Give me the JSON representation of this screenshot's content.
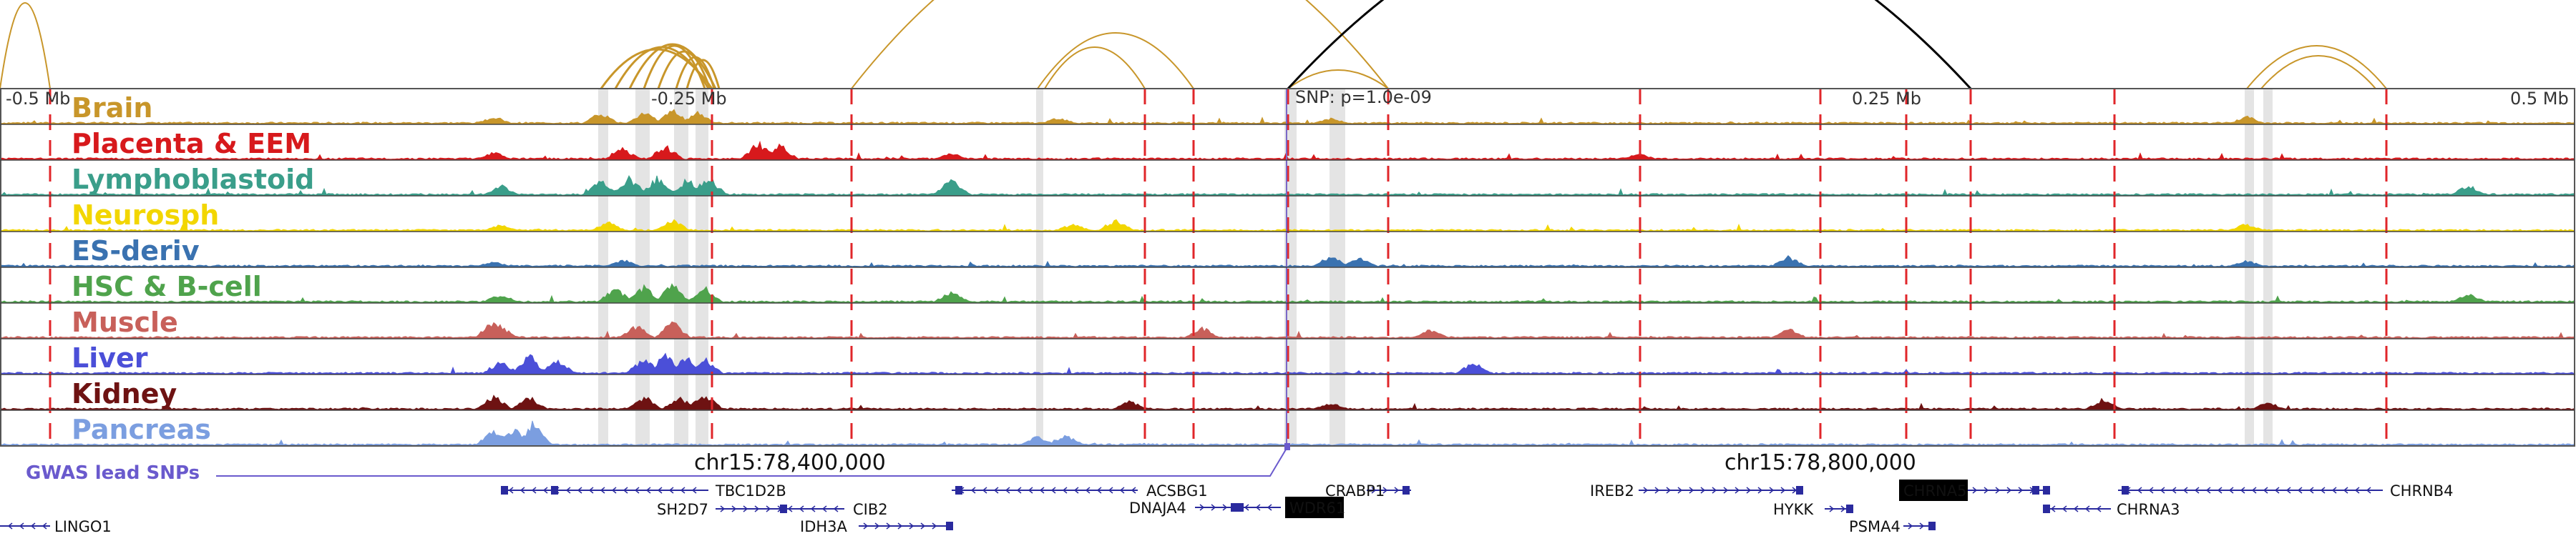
{
  "axis_labels": {
    "left": "-0.5 Mb",
    "left_mid": "-0.25 Mb",
    "right_mid": "0.25 Mb",
    "right": "0.5 Mb"
  },
  "snp_label": "SNP: p=1.0e-09",
  "chromosome_labels": [
    "chr15:78,400,000",
    "chr15:78,800,000"
  ],
  "gwas_label": "GWAS lead SNPs",
  "tracks": [
    {
      "name": "Brain",
      "color": "#c8962a"
    },
    {
      "name": "Placenta & EEM",
      "color": "#d7191c"
    },
    {
      "name": "Lymphoblastoid",
      "color": "#3a9e8a"
    },
    {
      "name": "Neurosph",
      "color": "#f2d600"
    },
    {
      "name": "ES-deriv",
      "color": "#3a72b0"
    },
    {
      "name": "HSC & B-cell",
      "color": "#4fa34c"
    },
    {
      "name": "Muscle",
      "color": "#c8605a"
    },
    {
      "name": "Liver",
      "color": "#4b4fd8"
    },
    {
      "name": "Kidney",
      "color": "#6e1212"
    },
    {
      "name": "Pancreas",
      "color": "#7b9ee0"
    }
  ],
  "genes": [
    {
      "name": "TBC1D2B",
      "highlighted": false
    },
    {
      "name": "SH2D7",
      "highlighted": false
    },
    {
      "name": "CIB2",
      "highlighted": false
    },
    {
      "name": "IDH3A",
      "highlighted": false
    },
    {
      "name": "ACSBG1",
      "highlighted": false
    },
    {
      "name": "DNAJA4",
      "highlighted": false
    },
    {
      "name": "WDR61",
      "highlighted": true
    },
    {
      "name": "CRABP1",
      "highlighted": false
    },
    {
      "name": "IREB2",
      "highlighted": false
    },
    {
      "name": "HYKK",
      "highlighted": false
    },
    {
      "name": "PSMA4",
      "highlighted": false
    },
    {
      "name": "CHRNA5",
      "highlighted": true
    },
    {
      "name": "CHRNA3",
      "highlighted": false
    },
    {
      "name": "CHRNB4",
      "highlighted": false
    },
    {
      "name": "LINGO1",
      "highlighted": false
    }
  ],
  "colors": {
    "arc": "#c8962a",
    "snp_arc": "#000000",
    "dashed_line": "#e0262a",
    "gwas_line": "#6a5acd",
    "gene": "#2a2a9e",
    "frame": "#555555"
  }
}
